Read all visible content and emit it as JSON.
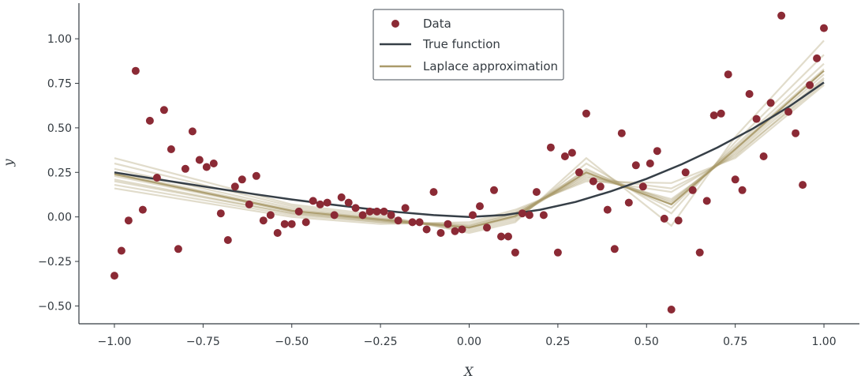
{
  "chart_data": {
    "type": "scatter",
    "xlabel": "X",
    "ylabel": "y",
    "xlim": [
      -1.1,
      1.1
    ],
    "ylim": [
      -0.6,
      1.2
    ],
    "xticks": [
      -1.0,
      -0.75,
      -0.5,
      -0.25,
      0.0,
      0.25,
      0.5,
      0.75,
      1.0
    ],
    "xtick_labels": [
      "−1.00",
      "−0.75",
      "−0.50",
      "−0.25",
      "0.00",
      "0.25",
      "0.50",
      "0.75",
      "1.00"
    ],
    "yticks": [
      -0.5,
      -0.25,
      0.0,
      0.25,
      0.5,
      0.75,
      1.0
    ],
    "ytick_labels": [
      "−0.50",
      "−0.25",
      "0.00",
      "0.25",
      "0.50",
      "0.75",
      "1.00"
    ],
    "grid": false,
    "legend_position": "top-center",
    "legend": [
      {
        "label": "Data",
        "marker": "circle",
        "color": "#8b2a35"
      },
      {
        "label": "True function",
        "marker": "line",
        "color": "#363f47"
      },
      {
        "label": "Laplace approximation",
        "marker": "line",
        "color": "#aa9a6a"
      }
    ],
    "colors": {
      "data": "#8b2a35",
      "true_function": "#363f47",
      "laplace": "#aa9a6a",
      "axis": "#333a40"
    },
    "series": [
      {
        "name": "Data",
        "kind": "scatter",
        "points": [
          [
            -1.0,
            -0.33
          ],
          [
            -0.98,
            -0.19
          ],
          [
            -0.96,
            -0.02
          ],
          [
            -0.94,
            0.82
          ],
          [
            -0.92,
            0.04
          ],
          [
            -0.9,
            0.54
          ],
          [
            -0.88,
            0.22
          ],
          [
            -0.86,
            0.6
          ],
          [
            -0.84,
            0.38
          ],
          [
            -0.82,
            -0.18
          ],
          [
            -0.8,
            0.27
          ],
          [
            -0.78,
            0.48
          ],
          [
            -0.76,
            0.32
          ],
          [
            -0.74,
            0.28
          ],
          [
            -0.72,
            0.3
          ],
          [
            -0.7,
            0.02
          ],
          [
            -0.68,
            -0.13
          ],
          [
            -0.66,
            0.17
          ],
          [
            -0.64,
            0.21
          ],
          [
            -0.62,
            0.07
          ],
          [
            -0.6,
            0.23
          ],
          [
            -0.58,
            -0.02
          ],
          [
            -0.56,
            0.01
          ],
          [
            -0.54,
            -0.09
          ],
          [
            -0.52,
            -0.04
          ],
          [
            -0.5,
            -0.04
          ],
          [
            -0.48,
            0.03
          ],
          [
            -0.46,
            -0.03
          ],
          [
            -0.44,
            0.09
          ],
          [
            -0.42,
            0.07
          ],
          [
            -0.4,
            0.08
          ],
          [
            -0.38,
            0.01
          ],
          [
            -0.36,
            0.11
          ],
          [
            -0.34,
            0.08
          ],
          [
            -0.32,
            0.05
          ],
          [
            -0.3,
            0.01
          ],
          [
            -0.28,
            0.03
          ],
          [
            -0.26,
            0.03
          ],
          [
            -0.24,
            0.03
          ],
          [
            -0.22,
            0.01
          ],
          [
            -0.2,
            -0.02
          ],
          [
            -0.18,
            0.05
          ],
          [
            -0.16,
            -0.03
          ],
          [
            -0.14,
            -0.03
          ],
          [
            -0.12,
            -0.07
          ],
          [
            -0.1,
            0.14
          ],
          [
            -0.08,
            -0.09
          ],
          [
            -0.06,
            -0.04
          ],
          [
            -0.04,
            -0.08
          ],
          [
            -0.02,
            -0.07
          ],
          [
            0.01,
            0.01
          ],
          [
            0.03,
            0.06
          ],
          [
            0.05,
            -0.06
          ],
          [
            0.07,
            0.15
          ],
          [
            0.09,
            -0.11
          ],
          [
            0.11,
            -0.11
          ],
          [
            0.13,
            -0.2
          ],
          [
            0.15,
            0.02
          ],
          [
            0.17,
            0.01
          ],
          [
            0.19,
            0.14
          ],
          [
            0.21,
            0.01
          ],
          [
            0.23,
            0.39
          ],
          [
            0.25,
            -0.2
          ],
          [
            0.27,
            0.34
          ],
          [
            0.29,
            0.36
          ],
          [
            0.31,
            0.25
          ],
          [
            0.33,
            0.58
          ],
          [
            0.35,
            0.2
          ],
          [
            0.37,
            0.17
          ],
          [
            0.39,
            0.04
          ],
          [
            0.41,
            -0.18
          ],
          [
            0.43,
            0.47
          ],
          [
            0.45,
            0.08
          ],
          [
            0.47,
            0.29
          ],
          [
            0.49,
            0.17
          ],
          [
            0.51,
            0.3
          ],
          [
            0.53,
            0.37
          ],
          [
            0.55,
            -0.01
          ],
          [
            0.57,
            -0.52
          ],
          [
            0.59,
            -0.02
          ],
          [
            0.61,
            0.25
          ],
          [
            0.63,
            0.15
          ],
          [
            0.65,
            -0.2
          ],
          [
            0.67,
            0.09
          ],
          [
            0.69,
            0.57
          ],
          [
            0.71,
            0.58
          ],
          [
            0.73,
            0.8
          ],
          [
            0.75,
            0.21
          ],
          [
            0.77,
            0.15
          ],
          [
            0.79,
            0.69
          ],
          [
            0.81,
            0.55
          ],
          [
            0.83,
            0.34
          ],
          [
            0.85,
            0.64
          ],
          [
            0.88,
            1.13
          ],
          [
            0.9,
            0.59
          ],
          [
            0.92,
            0.47
          ],
          [
            0.94,
            0.18
          ],
          [
            0.96,
            0.74
          ],
          [
            0.98,
            0.89
          ],
          [
            1.0,
            1.06
          ]
        ]
      },
      {
        "name": "True function",
        "kind": "line",
        "function": "0.75*x^2 + 0.25*x^3 ... approx",
        "x": [
          -1.0,
          -0.9,
          -0.8,
          -0.7,
          -0.6,
          -0.5,
          -0.4,
          -0.3,
          -0.2,
          -0.1,
          0.0,
          0.1,
          0.2,
          0.3,
          0.4,
          0.5,
          0.6,
          0.7,
          0.8,
          0.9,
          1.0
        ],
        "y": [
          0.25,
          0.218,
          0.187,
          0.156,
          0.126,
          0.098,
          0.072,
          0.048,
          0.027,
          0.01,
          0.0,
          0.011,
          0.04,
          0.084,
          0.144,
          0.214,
          0.296,
          0.39,
          0.496,
          0.617,
          0.755
        ]
      },
      {
        "name": "Laplace approximation",
        "kind": "lines",
        "x": [
          -1.0,
          -0.5,
          -0.25,
          0.0,
          0.13,
          0.33,
          0.57,
          0.75,
          1.0
        ],
        "samples": [
          [
            0.24,
            0.03,
            -0.02,
            -0.06,
            0.0,
            0.25,
            0.07,
            0.38,
            0.82
          ],
          [
            0.21,
            0.02,
            -0.03,
            -0.05,
            0.02,
            0.23,
            0.1,
            0.36,
            0.78
          ],
          [
            0.27,
            0.05,
            -0.01,
            -0.07,
            -0.01,
            0.27,
            0.05,
            0.4,
            0.86
          ],
          [
            0.18,
            0.01,
            -0.03,
            -0.04,
            0.03,
            0.21,
            0.14,
            0.35,
            0.75
          ],
          [
            0.3,
            0.06,
            0.0,
            -0.08,
            -0.02,
            0.3,
            0.02,
            0.42,
            0.91
          ],
          [
            0.23,
            0.03,
            -0.02,
            -0.06,
            0.01,
            0.26,
            0.08,
            0.39,
            0.83
          ],
          [
            0.2,
            0.02,
            -0.02,
            -0.05,
            0.02,
            0.22,
            0.16,
            0.34,
            0.77
          ],
          [
            0.33,
            0.07,
            0.01,
            -0.09,
            -0.03,
            0.33,
            -0.05,
            0.45,
            0.99
          ],
          [
            0.25,
            0.04,
            -0.01,
            -0.06,
            0.0,
            0.24,
            0.09,
            0.37,
            0.8
          ],
          [
            0.16,
            0.0,
            -0.04,
            -0.03,
            0.04,
            0.2,
            0.19,
            0.33,
            0.74
          ]
        ],
        "mean": [
          0.24,
          0.035,
          -0.015,
          -0.06,
          0.005,
          0.25,
          0.07,
          0.38,
          0.82
        ]
      }
    ]
  }
}
